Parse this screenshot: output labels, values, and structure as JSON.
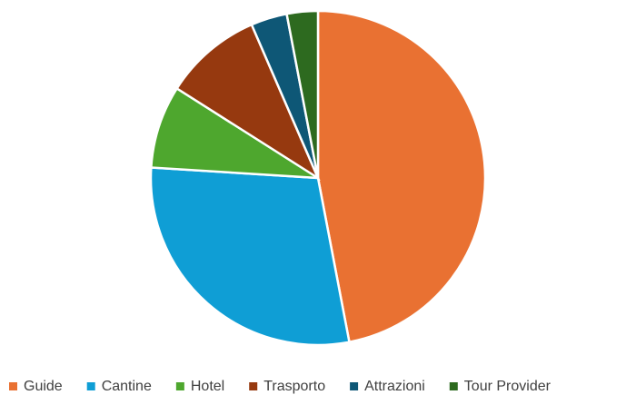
{
  "chart_data": {
    "type": "pie",
    "categories": [
      "Guide",
      "Cantine",
      "Hotel",
      "Trasporto",
      "Attrazioni",
      "Tour Provider"
    ],
    "values": [
      47,
      29,
      8,
      9.5,
      3.5,
      3
    ],
    "colors": [
      "#e97132",
      "#0f9ed5",
      "#4ea72e",
      "#96390f",
      "#0e5776",
      "#2d6a1f"
    ],
    "legend": "bottom"
  }
}
